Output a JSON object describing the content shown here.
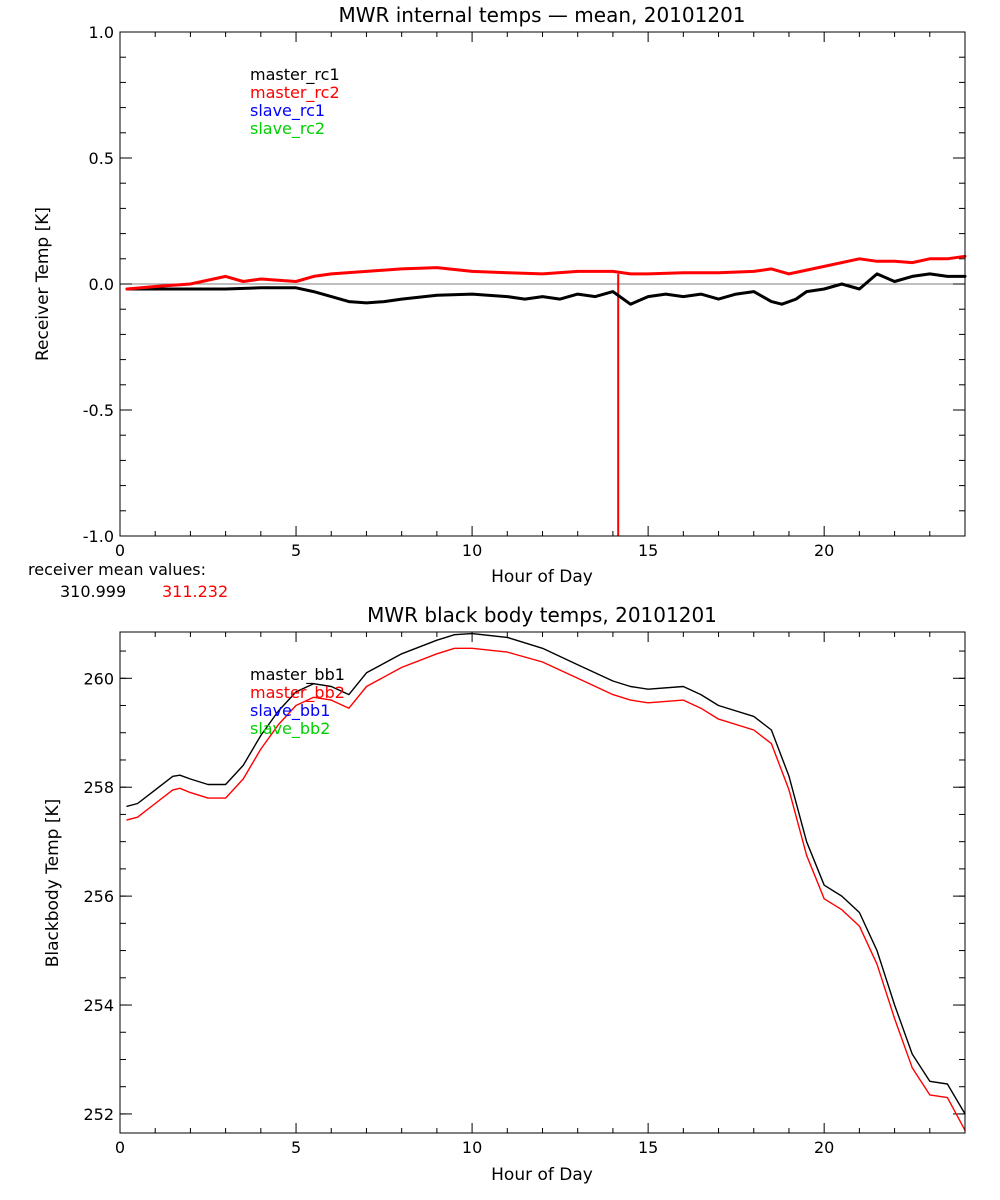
{
  "chart_data": [
    {
      "type": "line",
      "title": "MWR internal temps — mean, 20101201",
      "xlabel": "Hour of Day",
      "ylabel": "Receiver Temp [K]",
      "xlim": [
        0,
        24
      ],
      "ylim": [
        -1.0,
        1.0
      ],
      "x_ticks": [
        0,
        5,
        10,
        15,
        20
      ],
      "x_tick_labels": [
        "0",
        "5",
        "10",
        "15",
        "20"
      ],
      "y_ticks": [
        1.0,
        0.5,
        0.0,
        -0.5,
        -1.0
      ],
      "y_tick_labels": [
        "1.0",
        "0.5",
        "0.0",
        "-0.5",
        "-1.0"
      ],
      "legend": {
        "placement": "top-left",
        "entries": [
          {
            "label": "master_rc1",
            "color": "#000000"
          },
          {
            "label": "master_rc2",
            "color": "#ff0000"
          },
          {
            "label": "slave_rc1",
            "color": "#0000ff"
          },
          {
            "label": "slave_rc2",
            "color": "#00d000"
          }
        ]
      },
      "series": [
        {
          "name": "master_rc1",
          "color": "#000000",
          "x": [
            0.2,
            1,
            2,
            3,
            4,
            5,
            5.5,
            6,
            6.5,
            7,
            7.5,
            8,
            9,
            10,
            11,
            11.5,
            12,
            12.5,
            13,
            13.5,
            14,
            14.5,
            15,
            15.5,
            16,
            16.5,
            17,
            17.5,
            18,
            18.5,
            18.8,
            19.2,
            19.5,
            20,
            20.5,
            21,
            21.5,
            22,
            22.5,
            23,
            23.5,
            24
          ],
          "y": [
            -0.02,
            -0.02,
            -0.02,
            -0.02,
            -0.015,
            -0.015,
            -0.03,
            -0.05,
            -0.07,
            -0.075,
            -0.07,
            -0.06,
            -0.045,
            -0.04,
            -0.05,
            -0.06,
            -0.05,
            -0.06,
            -0.04,
            -0.05,
            -0.03,
            -0.08,
            -0.05,
            -0.04,
            -0.05,
            -0.04,
            -0.06,
            -0.04,
            -0.03,
            -0.07,
            -0.08,
            -0.06,
            -0.03,
            -0.02,
            0.0,
            -0.02,
            0.04,
            0.01,
            0.03,
            0.04,
            0.03,
            0.03
          ]
        },
        {
          "name": "master_rc2",
          "color": "#ff0000",
          "x": [
            0.2,
            1,
            2,
            3,
            3.5,
            4,
            5,
            5.5,
            6,
            7,
            8,
            9,
            10,
            11,
            12,
            13,
            14,
            14.5,
            15,
            16,
            17,
            18,
            18.5,
            19,
            20,
            21,
            21.5,
            22,
            22.5,
            23,
            23.5,
            24
          ],
          "y": [
            -0.02,
            -0.01,
            0.0,
            0.03,
            0.01,
            0.02,
            0.01,
            0.03,
            0.04,
            0.05,
            0.06,
            0.065,
            0.05,
            0.045,
            0.04,
            0.05,
            0.05,
            0.04,
            0.04,
            0.045,
            0.045,
            0.05,
            0.06,
            0.04,
            0.07,
            0.1,
            0.09,
            0.09,
            0.085,
            0.1,
            0.1,
            0.11
          ]
        }
      ],
      "annotation": {
        "label": "receiver mean values:",
        "values": [
          {
            "text": "310.999",
            "color": "#000000"
          },
          {
            "text": "311.232",
            "color": "#ff0000"
          }
        ]
      },
      "spike": {
        "series": "master_rc2",
        "x": 14.15,
        "y_top": 0.04,
        "y_bottom": -1.0,
        "color": "#ff0000"
      }
    },
    {
      "type": "line",
      "title": "MWR black body temps, 20101201",
      "xlabel": "Hour of Day",
      "ylabel": "Blackbody Temp [K]",
      "xlim": [
        0,
        24
      ],
      "ylim": [
        251.65,
        260.85
      ],
      "x_ticks": [
        0,
        5,
        10,
        15,
        20
      ],
      "x_tick_labels": [
        "0",
        "5",
        "10",
        "15",
        "20"
      ],
      "y_ticks": [
        260,
        258,
        256,
        254,
        252
      ],
      "y_tick_labels": [
        "260",
        "258",
        "256",
        "254",
        "252"
      ],
      "legend": {
        "placement": "top-left",
        "entries": [
          {
            "label": "master_bb1",
            "color": "#000000"
          },
          {
            "label": "master_bb2",
            "color": "#ff0000"
          },
          {
            "label": "slave_bb1",
            "color": "#0000ff"
          },
          {
            "label": "slave_bb2",
            "color": "#00d000"
          }
        ]
      },
      "series": [
        {
          "name": "master_bb1",
          "color": "#000000",
          "x": [
            0.2,
            0.5,
            1,
            1.5,
            1.7,
            2,
            2.5,
            3,
            3.5,
            4,
            4.5,
            5,
            5.5,
            6,
            6.5,
            7,
            8,
            9,
            9.5,
            10,
            11,
            12,
            13,
            14,
            14.5,
            15,
            16,
            16.5,
            17,
            18,
            18.5,
            19,
            19.5,
            20,
            20.5,
            21,
            21.5,
            22,
            22.5,
            23,
            23.5,
            24
          ],
          "y": [
            257.65,
            257.7,
            257.95,
            258.2,
            258.22,
            258.15,
            258.05,
            258.05,
            258.4,
            258.95,
            259.4,
            259.75,
            259.9,
            259.85,
            259.7,
            260.1,
            260.45,
            260.7,
            260.8,
            260.82,
            260.75,
            260.55,
            260.25,
            259.95,
            259.85,
            259.8,
            259.85,
            259.7,
            259.5,
            259.3,
            259.05,
            258.2,
            257.0,
            256.2,
            256.0,
            255.7,
            255.0,
            254.0,
            253.1,
            252.6,
            252.55,
            252.0
          ]
        },
        {
          "name": "master_bb2",
          "color": "#ff0000",
          "x": [
            0.2,
            0.5,
            1,
            1.5,
            1.7,
            2,
            2.5,
            3,
            3.5,
            4,
            4.5,
            5,
            5.5,
            6,
            6.5,
            7,
            8,
            9,
            9.5,
            10,
            11,
            12,
            13,
            14,
            14.5,
            15,
            16,
            16.5,
            17,
            18,
            18.5,
            19,
            19.5,
            20,
            20.5,
            21,
            21.5,
            22,
            22.5,
            23,
            23.5,
            24
          ],
          "y": [
            257.4,
            257.45,
            257.7,
            257.95,
            257.98,
            257.9,
            257.8,
            257.8,
            258.15,
            258.7,
            259.15,
            259.5,
            259.65,
            259.6,
            259.45,
            259.85,
            260.2,
            260.45,
            260.55,
            260.55,
            260.48,
            260.3,
            260.0,
            259.7,
            259.6,
            259.55,
            259.6,
            259.45,
            259.25,
            259.05,
            258.8,
            257.95,
            256.75,
            255.95,
            255.75,
            255.45,
            254.75,
            253.75,
            252.85,
            252.35,
            252.3,
            251.7
          ]
        }
      ]
    }
  ]
}
